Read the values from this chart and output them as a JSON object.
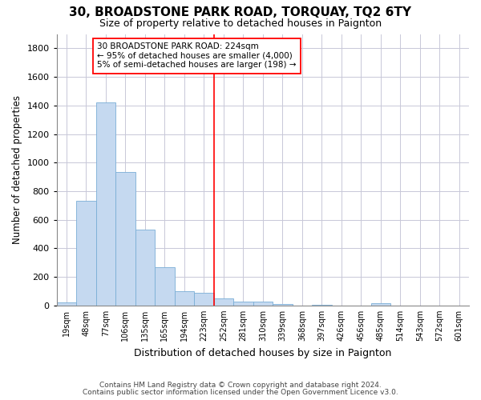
{
  "title": "30, BROADSTONE PARK ROAD, TORQUAY, TQ2 6TY",
  "subtitle": "Size of property relative to detached houses in Paignton",
  "xlabel": "Distribution of detached houses by size in Paignton",
  "ylabel": "Number of detached properties",
  "categories": [
    "19sqm",
    "48sqm",
    "77sqm",
    "106sqm",
    "135sqm",
    "165sqm",
    "194sqm",
    "223sqm",
    "252sqm",
    "281sqm",
    "310sqm",
    "339sqm",
    "368sqm",
    "397sqm",
    "426sqm",
    "456sqm",
    "485sqm",
    "514sqm",
    "543sqm",
    "572sqm",
    "601sqm"
  ],
  "values": [
    22,
    735,
    1420,
    935,
    530,
    268,
    100,
    90,
    48,
    28,
    25,
    12,
    0,
    5,
    0,
    0,
    15,
    0,
    0,
    0,
    0
  ],
  "bar_color": "#c5d9f0",
  "bar_edge_color": "#7aaed6",
  "background_color": "#ffffff",
  "grid_color": "#c8c8d8",
  "red_line_index": 7.5,
  "annotation_line1": "30 BROADSTONE PARK ROAD: 224sqm",
  "annotation_line2": "← 95% of detached houses are smaller (4,000)",
  "annotation_line3": "5% of semi-detached houses are larger (198) →",
  "ylim": [
    0,
    1900
  ],
  "yticks": [
    0,
    200,
    400,
    600,
    800,
    1000,
    1200,
    1400,
    1600,
    1800
  ],
  "footnote1": "Contains HM Land Registry data © Crown copyright and database right 2024.",
  "footnote2": "Contains public sector information licensed under the Open Government Licence v3.0."
}
